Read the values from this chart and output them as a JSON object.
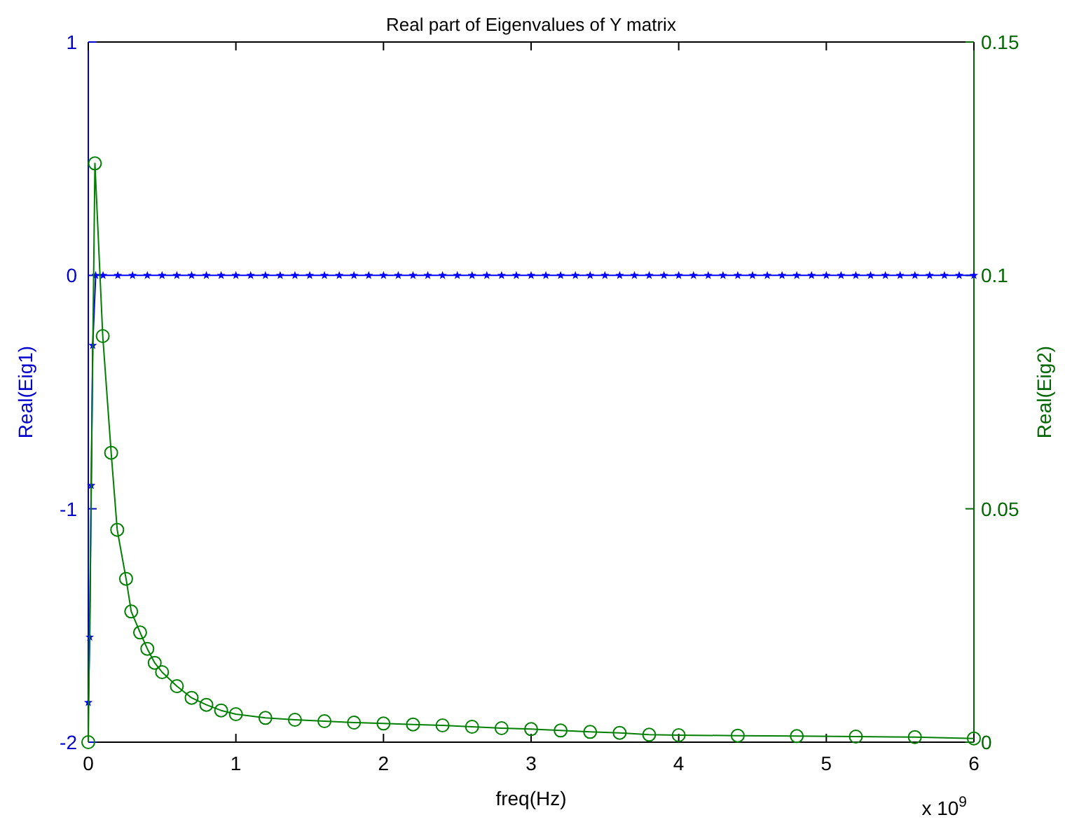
{
  "chart_data": {
    "type": "line",
    "title": "Real part of Eigenvalues of Y  matrix",
    "xlabel": "freq(Hz)",
    "ylabel": "Real(Eig1)",
    "y2label": "Real(Eig2)",
    "annotations": [
      "x 10$^{9}$"
    ],
    "xlim": [
      0,
      6
    ],
    "xticks": [
      0,
      1,
      2,
      3,
      4,
      5,
      6
    ],
    "ylim": [
      -2,
      1
    ],
    "yticks": [
      -2,
      -1,
      0,
      1
    ],
    "y2lim": [
      0,
      0.15
    ],
    "y2ticks": [
      0,
      0.05,
      0.1,
      0.15
    ],
    "grid": false,
    "line_style": "solid",
    "series": [
      {
        "color": "#0000ff",
        "marker": "star",
        "x": [
          0,
          0.01,
          0.02,
          0.03,
          0.05,
          0.1,
          0.2,
          0.3,
          0.4,
          0.5,
          0.6,
          0.7,
          0.8,
          0.9,
          1.0,
          1.1,
          1.2,
          1.3,
          1.4,
          1.5,
          1.6,
          1.7,
          1.8,
          1.9,
          2.0,
          2.1,
          2.2,
          2.3,
          2.4,
          2.5,
          2.6,
          2.7,
          2.8,
          2.9,
          3.0,
          3.1,
          3.2,
          3.3,
          3.4,
          3.5,
          3.6,
          3.7,
          3.8,
          3.9,
          4.0,
          4.1,
          4.2,
          4.3,
          4.4,
          4.5,
          4.6,
          4.7,
          4.8,
          4.9,
          5.0,
          5.1,
          5.2,
          5.3,
          5.4,
          5.5,
          5.6,
          5.7,
          5.8,
          5.9,
          6.0
        ],
        "values": [
          -1.83,
          -1.55,
          -0.9,
          -0.3,
          0,
          0,
          0,
          0,
          0,
          0,
          0,
          0,
          0,
          0,
          0,
          0,
          0,
          0,
          0,
          0,
          0,
          0,
          0,
          0,
          0,
          0,
          0,
          0,
          0,
          0,
          0,
          0,
          0,
          0,
          0,
          0,
          0,
          0,
          0,
          0,
          0,
          0,
          0,
          0,
          0,
          0,
          0,
          0,
          0,
          0,
          0,
          0,
          0,
          0,
          0,
          0,
          0,
          0,
          0,
          0,
          0,
          0,
          0,
          0,
          0
        ]
      },
      {
        "color": "#008000",
        "marker": "circle",
        "axis": "y2",
        "x": [
          0,
          0.045,
          0.098,
          0.155,
          0.196,
          0.256,
          0.291,
          0.351,
          0.4,
          0.45,
          0.5,
          0.6,
          0.7,
          0.8,
          0.9,
          1.0,
          1.2,
          1.4,
          1.6,
          1.8,
          2.0,
          2.2,
          2.4,
          2.6,
          2.8,
          3.0,
          3.2,
          3.4,
          3.6,
          3.8,
          4.0,
          4.4,
          4.8,
          5.2,
          5.6,
          6.0
        ],
        "values": [
          0,
          0.124,
          0.087,
          0.062,
          0.0455,
          0.035,
          0.028,
          0.0235,
          0.02,
          0.017,
          0.015,
          0.012,
          0.0095,
          0.008,
          0.0068,
          0.006,
          0.0052,
          0.0048,
          0.0045,
          0.0042,
          0.004,
          0.0038,
          0.0036,
          0.0033,
          0.003,
          0.0028,
          0.0025,
          0.0022,
          0.002,
          0.0016,
          0.0015,
          0.0014,
          0.0013,
          0.0012,
          0.0011,
          0.0008
        ]
      }
    ]
  }
}
